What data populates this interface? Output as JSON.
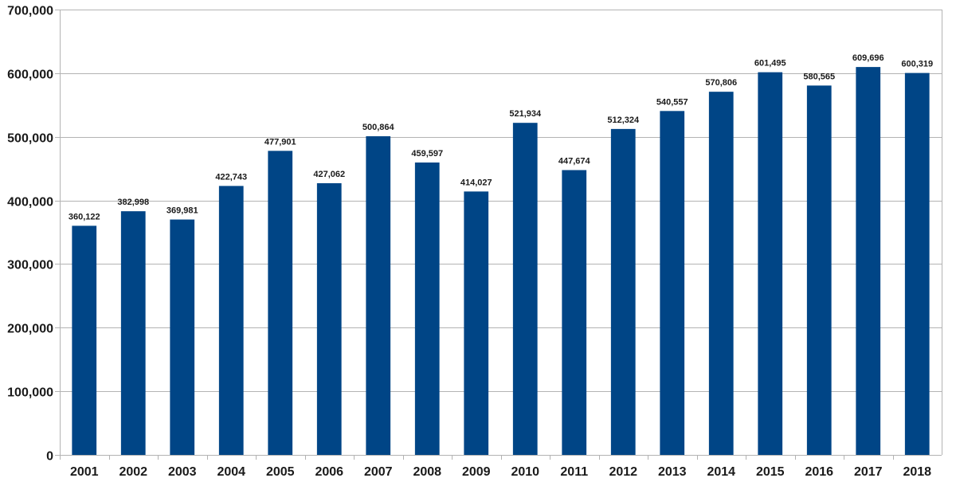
{
  "chart_data": {
    "type": "bar",
    "categories": [
      "2001",
      "2002",
      "2003",
      "2004",
      "2005",
      "2006",
      "2007",
      "2008",
      "2009",
      "2010",
      "2011",
      "2012",
      "2013",
      "2014",
      "2015",
      "2016",
      "2017",
      "2018"
    ],
    "series": [
      {
        "values": [
          360122,
          382998,
          369981,
          422743,
          477901,
          427062,
          500864,
          459597,
          414027,
          521934,
          447674,
          512324,
          540557,
          570806,
          601495,
          580565,
          609696,
          600319
        ],
        "color": "#004586"
      }
    ],
    "value_labels": [
      "360,122",
      "382,998",
      "369,981",
      "422,743",
      "477,901",
      "427,062",
      "500,864",
      "459,597",
      "414,027",
      "521,934",
      "447,674",
      "512,324",
      "540,557",
      "570,806",
      "601,495",
      "580,565",
      "609,696",
      "600,319"
    ],
    "y_ticks": [
      "0",
      "100,000",
      "200,000",
      "300,000",
      "400,000",
      "500,000",
      "600,000",
      "700,000"
    ],
    "ylim": [
      0,
      700000
    ],
    "grid": true,
    "legend": "none",
    "colors": {
      "bar": "#004586",
      "grid": "#b3b3b3",
      "axis": "#b3b3b3",
      "text": "#1a1a1a"
    }
  }
}
